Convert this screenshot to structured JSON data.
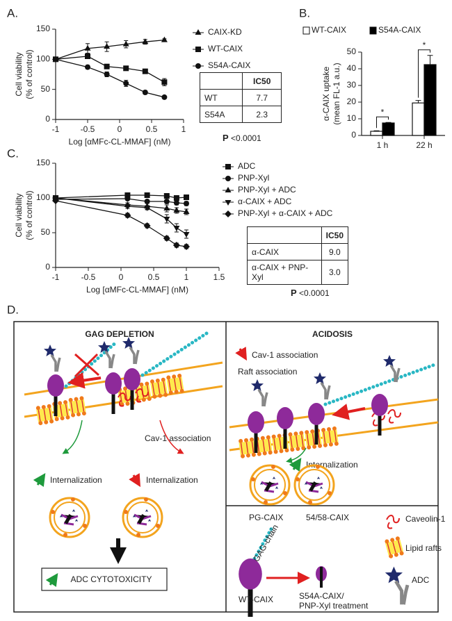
{
  "panel_labels": [
    "A.",
    "B.",
    "C."
  ],
  "chart_data": [
    {
      "type": "line",
      "xlabel": "Log [αMFc-CL-MMAF] (nM)",
      "ylabel": [
        "Cell viability",
        "(% of control)"
      ],
      "xlim": [
        -1,
        1
      ],
      "xticks": [
        -1,
        -0.5,
        0,
        0.5,
        1
      ],
      "ylim": [
        0,
        150
      ],
      "yticks": [
        0,
        50,
        100,
        150
      ],
      "legend": "right",
      "x": [
        -1,
        -0.5,
        -0.2,
        0.1,
        0.4,
        0.7
      ],
      "series": [
        {
          "name": "CAIX-KD",
          "marker": "triangle",
          "color": "#111111",
          "values": [
            100,
            118,
            121,
            125,
            129,
            132
          ],
          "errors": [
            1,
            8,
            8,
            6,
            4,
            2
          ]
        },
        {
          "name": "WT-CAIX",
          "marker": "square",
          "color": "#111111",
          "values": [
            100,
            105,
            88,
            85,
            80,
            62
          ],
          "errors": [
            1,
            4,
            3,
            3,
            3,
            6
          ]
        },
        {
          "name": "S54A-CAIX",
          "marker": "circle",
          "color": "#111111",
          "values": [
            100,
            87,
            75,
            60,
            45,
            37
          ],
          "errors": [
            1,
            3,
            4,
            5,
            3,
            2
          ]
        }
      ]
    },
    {
      "type": "bar",
      "ylabel": [
        "α-CAIX uptake",
        "(mean FL-1 a.u.)"
      ],
      "categories": [
        "1 h",
        "22 h"
      ],
      "ylim": [
        0,
        50
      ],
      "yticks": [
        0,
        10,
        20,
        30,
        40,
        50
      ],
      "legend": "top",
      "annotations": [
        "*",
        "*"
      ],
      "series": [
        {
          "name": "WT-CAIX",
          "color": "#ffffff",
          "values": [
            2.5,
            19.5
          ],
          "errors": [
            0.3,
            1.5
          ]
        },
        {
          "name": "S54A-CAIX",
          "color": "#000000",
          "values": [
            7.5,
            42.5
          ],
          "errors": [
            0.3,
            5.5
          ]
        }
      ]
    },
    {
      "type": "line",
      "xlabel": "Log [αMFc-CL-MMAF] (nM)",
      "ylabel": [
        "Cell viability",
        "(% of control)"
      ],
      "xlim": [
        -1,
        1.5
      ],
      "xticks": [
        -1,
        -0.5,
        0,
        0.5,
        1,
        1.5
      ],
      "ylim": [
        0,
        150
      ],
      "yticks": [
        0,
        50,
        100,
        150
      ],
      "legend": "right",
      "x": [
        -1,
        0.1,
        0.4,
        0.7,
        0.85,
        1
      ],
      "series": [
        {
          "name": "ADC",
          "marker": "square",
          "color": "#111111",
          "values": [
            100,
            104,
            104,
            103,
            100,
            101
          ],
          "errors": [
            1,
            3,
            3,
            2,
            2,
            2
          ]
        },
        {
          "name": "PNP-Xyl",
          "marker": "circle",
          "color": "#111111",
          "values": [
            98,
            99,
            95,
            95,
            93,
            92
          ],
          "errors": [
            1,
            2,
            2,
            3,
            3,
            3
          ]
        },
        {
          "name": "PNP-Xyl + ADC",
          "marker": "triangle",
          "color": "#111111",
          "values": [
            100,
            90,
            88,
            85,
            82,
            80
          ],
          "errors": [
            1,
            3,
            4,
            5,
            4,
            4
          ]
        },
        {
          "name": "α-CAIX + ADC",
          "marker": "triangle-down",
          "color": "#111111",
          "values": [
            100,
            88,
            86,
            70,
            57,
            48
          ],
          "errors": [
            1,
            3,
            3,
            6,
            6,
            6
          ]
        },
        {
          "name": "PNP-Xyl + α-CAIX + ADC",
          "marker": "diamond",
          "color": "#111111",
          "values": [
            96,
            75,
            60,
            42,
            32,
            30
          ],
          "errors": [
            1,
            3,
            3,
            3,
            3,
            3
          ]
        }
      ]
    }
  ],
  "tables": [
    {
      "header": "IC50",
      "rows": [
        [
          "WT",
          "7.7"
        ],
        [
          "S54A",
          "2.3"
        ]
      ],
      "p_label": "P",
      "p_value": "<0.0001"
    },
    {
      "header": "IC50",
      "rows": [
        [
          "α-CAIX",
          "9.0"
        ],
        [
          "α-CAIX + PNP-Xyl",
          "3.0"
        ]
      ],
      "p_label": "P",
      "p_value": "<0.0001"
    }
  ],
  "diagram": {
    "panel_label": "D.",
    "left": {
      "title": "GAG DEPLETION",
      "cav1": "Cav-1 association",
      "internalization_up": "Internalization",
      "internalization_down": "Internalization",
      "result": "ADC CYTOTOXICITY"
    },
    "right": {
      "title": "ACIDOSIS",
      "cav1": "Cav-1 association",
      "raft": "Raft association",
      "internalization": "Internalization"
    },
    "legend": {
      "pg_caix": "PG-CAIX",
      "caix_5458": "54/58-CAIX",
      "gag_chain": "GAG-chain",
      "wt_caix": "WT-CAIX",
      "s54a": [
        "S54A-CAIX/",
        "PNP-Xyl treatment"
      ],
      "caveolin": "Caveolin-1",
      "rafts": "Lipid rafts",
      "adc": "ADC"
    }
  }
}
